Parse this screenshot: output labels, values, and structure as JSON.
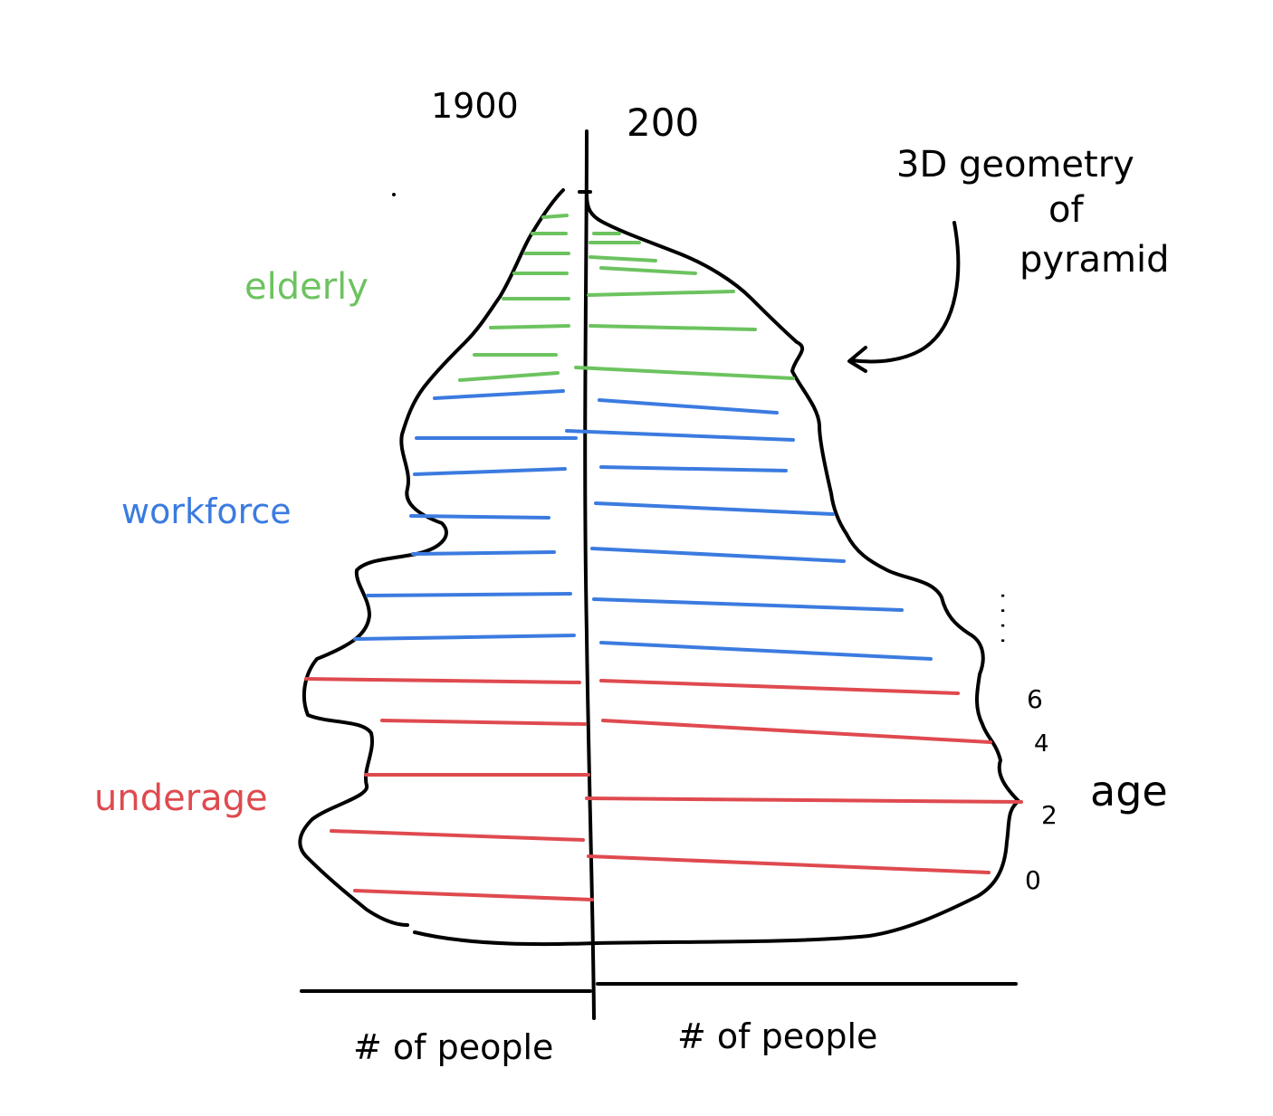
{
  "diagram": {
    "left_year": "1900",
    "right_year": "200",
    "x_label_left": "# of people",
    "x_label_right": "# of people",
    "y_label": "age",
    "age_ticks": [
      "0",
      "2",
      "4",
      "6",
      ". . . ."
    ],
    "annotation": [
      "3D geometry",
      "of",
      "pyramid"
    ],
    "groups": [
      {
        "label": "elderly",
        "color": "#6cc35f"
      },
      {
        "label": "workforce",
        "color": "#3b7be0"
      },
      {
        "label": "underage",
        "color": "#df4a4f"
      }
    ],
    "colors": {
      "ink": "#000000",
      "elderly": "#6cc35f",
      "workforce": "#3b7be0",
      "underage": "#df4a4f"
    }
  }
}
